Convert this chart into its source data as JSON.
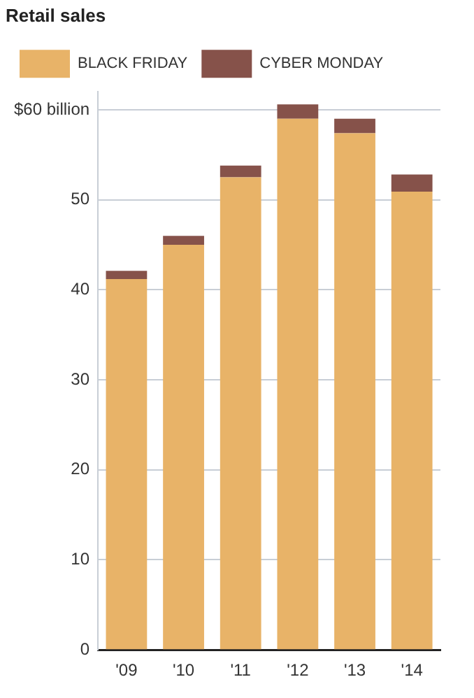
{
  "chart_data": {
    "type": "bar",
    "title": "Retail sales",
    "categories": [
      "'09",
      "'10",
      "'11",
      "'12",
      "'13",
      "'14"
    ],
    "stacked": true,
    "series": [
      {
        "name": "BLACK FRIDAY",
        "color": "#e8b368",
        "values": [
          41.2,
          45.0,
          52.5,
          59.0,
          57.4,
          50.9
        ]
      },
      {
        "name": "CYBER MONDAY",
        "color": "#86524a",
        "values": [
          0.9,
          1.0,
          1.3,
          1.6,
          1.6,
          1.9
        ]
      }
    ],
    "ylim": [
      0,
      62
    ],
    "yticks": [
      0,
      10,
      20,
      30,
      40,
      50,
      {
        "value": 60,
        "label": "$60 billion"
      }
    ],
    "grid": "y",
    "legend": "top left"
  }
}
